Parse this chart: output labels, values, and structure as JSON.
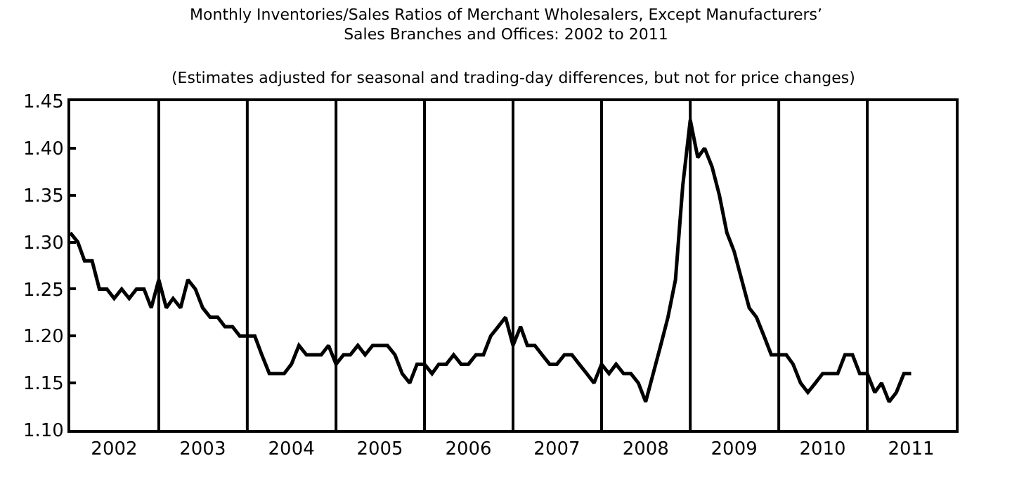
{
  "chart_data": {
    "type": "line",
    "title": "Monthly Inventories/Sales Ratios of Merchant Wholesalers, Except Manufacturers’\nSales Branches and Offices: 2002 to 2011",
    "subtitle": "(Estimates adjusted for seasonal and trading-day differences, but not for price changes)",
    "x": [
      "2002-01",
      "2002-02",
      "2002-03",
      "2002-04",
      "2002-05",
      "2002-06",
      "2002-07",
      "2002-08",
      "2002-09",
      "2002-10",
      "2002-11",
      "2002-12",
      "2003-01",
      "2003-02",
      "2003-03",
      "2003-04",
      "2003-05",
      "2003-06",
      "2003-07",
      "2003-08",
      "2003-09",
      "2003-10",
      "2003-11",
      "2003-12",
      "2004-01",
      "2004-02",
      "2004-03",
      "2004-04",
      "2004-05",
      "2004-06",
      "2004-07",
      "2004-08",
      "2004-09",
      "2004-10",
      "2004-11",
      "2004-12",
      "2005-01",
      "2005-02",
      "2005-03",
      "2005-04",
      "2005-05",
      "2005-06",
      "2005-07",
      "2005-08",
      "2005-09",
      "2005-10",
      "2005-11",
      "2005-12",
      "2006-01",
      "2006-02",
      "2006-03",
      "2006-04",
      "2006-05",
      "2006-06",
      "2006-07",
      "2006-08",
      "2006-09",
      "2006-10",
      "2006-11",
      "2006-12",
      "2007-01",
      "2007-02",
      "2007-03",
      "2007-04",
      "2007-05",
      "2007-06",
      "2007-07",
      "2007-08",
      "2007-09",
      "2007-10",
      "2007-11",
      "2007-12",
      "2008-01",
      "2008-02",
      "2008-03",
      "2008-04",
      "2008-05",
      "2008-06",
      "2008-07",
      "2008-08",
      "2008-09",
      "2008-10",
      "2008-11",
      "2008-12",
      "2009-01",
      "2009-02",
      "2009-03",
      "2009-04",
      "2009-05",
      "2009-06",
      "2009-07",
      "2009-08",
      "2009-09",
      "2009-10",
      "2009-11",
      "2009-12",
      "2010-01",
      "2010-02",
      "2010-03",
      "2010-04",
      "2010-05",
      "2010-06",
      "2010-07",
      "2010-08",
      "2010-09",
      "2010-10",
      "2010-11",
      "2010-12",
      "2011-01",
      "2011-02",
      "2011-03",
      "2011-04",
      "2011-05",
      "2011-06",
      "2011-07"
    ],
    "series": [
      {
        "color": "#000000",
        "values": [
          1.31,
          1.3,
          1.28,
          1.28,
          1.25,
          1.25,
          1.24,
          1.25,
          1.24,
          1.25,
          1.25,
          1.23,
          1.26,
          1.23,
          1.24,
          1.23,
          1.26,
          1.25,
          1.23,
          1.22,
          1.22,
          1.21,
          1.21,
          1.2,
          1.2,
          1.2,
          1.18,
          1.16,
          1.16,
          1.16,
          1.17,
          1.19,
          1.18,
          1.18,
          1.18,
          1.19,
          1.17,
          1.18,
          1.18,
          1.19,
          1.18,
          1.19,
          1.19,
          1.19,
          1.18,
          1.16,
          1.15,
          1.17,
          1.17,
          1.16,
          1.17,
          1.17,
          1.18,
          1.17,
          1.17,
          1.18,
          1.18,
          1.2,
          1.21,
          1.22,
          1.19,
          1.21,
          1.19,
          1.19,
          1.18,
          1.17,
          1.17,
          1.18,
          1.18,
          1.17,
          1.16,
          1.15,
          1.17,
          1.16,
          1.17,
          1.16,
          1.16,
          1.15,
          1.13,
          1.16,
          1.19,
          1.22,
          1.26,
          1.36,
          1.43,
          1.39,
          1.4,
          1.38,
          1.35,
          1.31,
          1.29,
          1.26,
          1.23,
          1.22,
          1.2,
          1.18,
          1.18,
          1.18,
          1.17,
          1.15,
          1.14,
          1.15,
          1.16,
          1.16,
          1.16,
          1.18,
          1.18,
          1.16,
          1.16,
          1.14,
          1.15,
          1.13,
          1.14,
          1.16,
          1.16
        ]
      }
    ],
    "xlim": [
      "2002-01-01",
      "2012-01-01"
    ],
    "xticks": [
      {
        "value": "2002-07-01",
        "label": "2002"
      },
      {
        "value": "2003-07-01",
        "label": "2003"
      },
      {
        "value": "2004-07-01",
        "label": "2004"
      },
      {
        "value": "2005-07-01",
        "label": "2005"
      },
      {
        "value": "2006-07-01",
        "label": "2006"
      },
      {
        "value": "2007-07-01",
        "label": "2007"
      },
      {
        "value": "2008-07-01",
        "label": "2008"
      },
      {
        "value": "2009-07-01",
        "label": "2009"
      },
      {
        "value": "2010-07-01",
        "label": "2010"
      },
      {
        "value": "2011-07-01",
        "label": "2011"
      }
    ],
    "ylim": [
      1.1,
      1.45
    ],
    "yticks": [
      {
        "value": 1.1,
        "label": "1.10"
      },
      {
        "value": 1.15,
        "label": "1.15"
      },
      {
        "value": 1.2,
        "label": "1.20"
      },
      {
        "value": 1.25,
        "label": "1.25"
      },
      {
        "value": 1.3,
        "label": "1.30"
      },
      {
        "value": 1.35,
        "label": "1.35"
      },
      {
        "value": 1.4,
        "label": "1.40"
      },
      {
        "value": 1.45,
        "label": "1.45"
      }
    ],
    "ref_lines": [
      {
        "axis": "x",
        "value": "2003-01-01",
        "color": "#000000"
      },
      {
        "axis": "x",
        "value": "2004-01-01",
        "color": "#000000"
      },
      {
        "axis": "x",
        "value": "2005-01-01",
        "color": "#000000"
      },
      {
        "axis": "x",
        "value": "2006-01-01",
        "color": "#000000"
      },
      {
        "axis": "x",
        "value": "2007-01-01",
        "color": "#000000"
      },
      {
        "axis": "x",
        "value": "2008-01-01",
        "color": "#000000"
      },
      {
        "axis": "x",
        "value": "2009-01-01",
        "color": "#000000"
      },
      {
        "axis": "x",
        "value": "2010-01-01",
        "color": "#000000"
      },
      {
        "axis": "x",
        "value": "2011-01-01",
        "color": "#000000"
      }
    ],
    "grid": false,
    "marker": "none",
    "line_style": "solid"
  }
}
